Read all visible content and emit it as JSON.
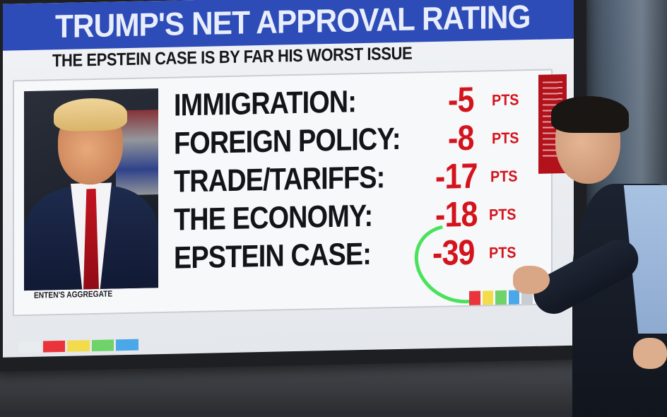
{
  "graphic": {
    "title": "TRUMP'S NET APPROVAL RATING",
    "subtitle": "THE EPSTEIN CASE IS BY FAR HIS WORST ISSUE",
    "source": "ENTEN'S AGGREGATE",
    "unit": "PTS",
    "issues": [
      {
        "label": "IMMIGRATION:",
        "value": "-5"
      },
      {
        "label": "FOREIGN POLICY:",
        "value": "-8"
      },
      {
        "label": "TRADE/TARIFFS:",
        "value": "-17"
      },
      {
        "label": "THE ECONOMY:",
        "value": "-18"
      },
      {
        "label": "EPSTEIN CASE:",
        "value": "-39"
      }
    ]
  },
  "colors": {
    "title_bar": "#2e4cb8",
    "value_red": "#d4141c",
    "annotation_green": "#37e04a"
  },
  "strip_colors": [
    "#e9ecef",
    "#e8343a",
    "#f3dc4b",
    "#6fd36a",
    "#4aa8e8"
  ],
  "strip_colors_small": [
    "#e8343a",
    "#f3dc4b",
    "#6fd36a",
    "#4aa8e8",
    "#c9ccd2"
  ]
}
